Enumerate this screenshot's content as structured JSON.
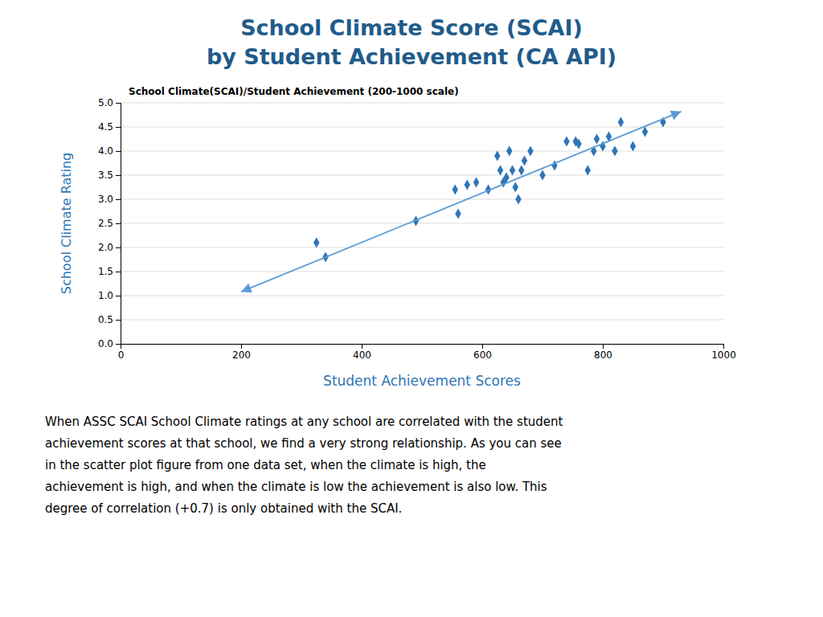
{
  "chart_data": {
    "type": "scatter",
    "title": [
      "School Climate Score (SCAI)",
      "by Student Achievement (CA API)"
    ],
    "subtitle": "School Climate(SCAI)/Student Achievement (200-1000 scale)",
    "x_label": "Student Achievement Scores",
    "y_label": "School Climate Rating",
    "series": [
      {
        "type": "scatter",
        "color": "#2E75B6",
        "marker": "diamond",
        "x": [
          325,
          340,
          490,
          555,
          560,
          575,
          590,
          610,
          625,
          630,
          635,
          640,
          645,
          650,
          655,
          660,
          665,
          670,
          680,
          700,
          720,
          740,
          755,
          760,
          775,
          785,
          790,
          800,
          810,
          820,
          830,
          850,
          870,
          900
        ],
        "values": [
          2.1,
          1.8,
          2.55,
          3.2,
          2.7,
          3.3,
          3.35,
          3.2,
          3.9,
          3.6,
          3.35,
          3.45,
          4.0,
          3.6,
          3.25,
          3.0,
          3.6,
          3.8,
          4.0,
          3.5,
          3.7,
          4.2,
          4.2,
          4.15,
          3.6,
          4.0,
          4.25,
          4.1,
          4.3,
          4.0,
          4.6,
          4.1,
          4.4,
          4.6
        ]
      },
      {
        "type": "line",
        "color": "#5B9BD5",
        "x": [
          200,
          930
        ],
        "values": [
          1.08,
          4.82
        ]
      }
    ],
    "xlim": [
      0,
      1000
    ],
    "ylim": [
      0,
      5
    ],
    "xticks": [
      0,
      200,
      400,
      600,
      800,
      1000
    ],
    "yticks": [
      {
        "value": 0,
        "label": "0.0"
      },
      0.5,
      {
        "value": 1,
        "label": "1.0"
      },
      1.5,
      {
        "value": 2,
        "label": "2.0"
      },
      2.5,
      {
        "value": 3,
        "label": "3.0"
      },
      3.5,
      {
        "value": 4,
        "label": "4.0"
      },
      4.5,
      {
        "value": 5,
        "label": "5.0"
      }
    ],
    "grid": "y",
    "annotations": [
      "When ASSC SCAI School Climate ratings at any school are correlated with the student",
      "achievement scores at that school, we find a very strong relationship. As you can see",
      "in the scatter plot figure from one data set, when the climate is high, the",
      "achievement is high, and when the climate is low the achievement is also low. This",
      "degree of correlation (+0.7) is only obtained with the SCAI."
    ]
  }
}
